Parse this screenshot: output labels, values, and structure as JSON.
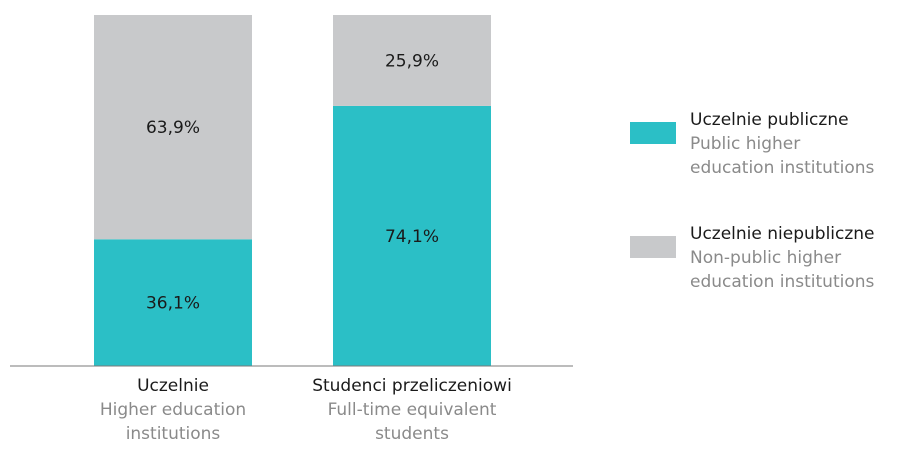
{
  "chart_data": {
    "type": "bar",
    "stacked": true,
    "percent": true,
    "categories": [
      {
        "label": "Uczelnie",
        "sublabel": "Higher education\ninstitutions"
      },
      {
        "label": "Studenci przeliczeniowi",
        "sublabel": "Full-time equivalent\nstudents"
      }
    ],
    "series": [
      {
        "name": "Uczelnie publiczne",
        "subname": "Public higher\neducation institutions",
        "color": "#2bbfc6",
        "values": [
          36.1,
          74.1
        ],
        "labels": [
          "36,1%",
          "74,1%"
        ]
      },
      {
        "name": "Uczelnie niepubliczne",
        "subname": "Non-public higher\neducation institutions",
        "color": "#c8c9cb",
        "values": [
          63.9,
          25.9
        ],
        "labels": [
          "63,9%",
          "25,9%"
        ]
      }
    ],
    "ylim": [
      0,
      100
    ],
    "grid": false,
    "legend_position": "right"
  }
}
